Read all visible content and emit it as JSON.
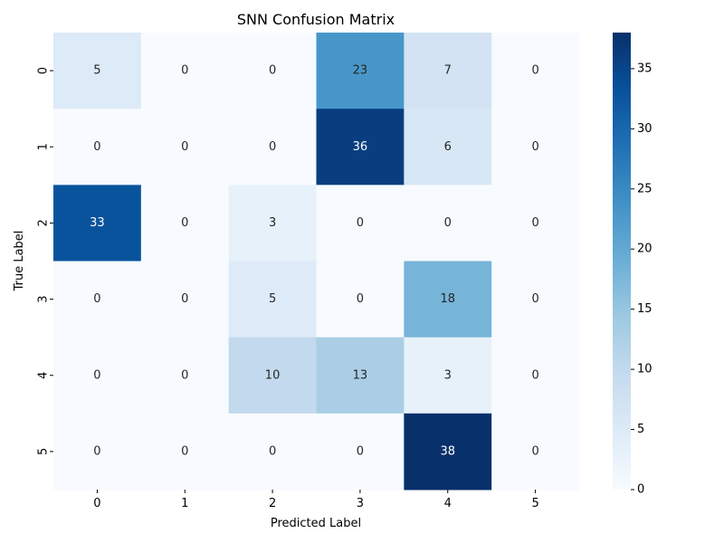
{
  "chart_data": {
    "type": "heatmap",
    "title": "SNN Confusion Matrix",
    "xlabel": "Predicted Label",
    "ylabel": "True Label",
    "x_categories": [
      "0",
      "1",
      "2",
      "3",
      "4",
      "5"
    ],
    "y_categories": [
      "0",
      "1",
      "2",
      "3",
      "4",
      "5"
    ],
    "values": [
      [
        5,
        0,
        0,
        23,
        7,
        0
      ],
      [
        0,
        0,
        0,
        36,
        6,
        0
      ],
      [
        33,
        0,
        3,
        0,
        0,
        0
      ],
      [
        0,
        0,
        5,
        0,
        18,
        0
      ],
      [
        0,
        0,
        10,
        13,
        3,
        0
      ],
      [
        0,
        0,
        0,
        0,
        38,
        0
      ]
    ],
    "colormap": "Blues",
    "color_range": [
      0,
      38
    ],
    "colorbar_ticks": [
      "0",
      "5",
      "10",
      "15",
      "20",
      "25",
      "30",
      "35"
    ],
    "colorbar_tick_values": [
      0,
      5,
      10,
      15,
      20,
      25,
      30,
      35
    ],
    "annotations": true,
    "grid": false,
    "legend": "colorbar-right"
  }
}
